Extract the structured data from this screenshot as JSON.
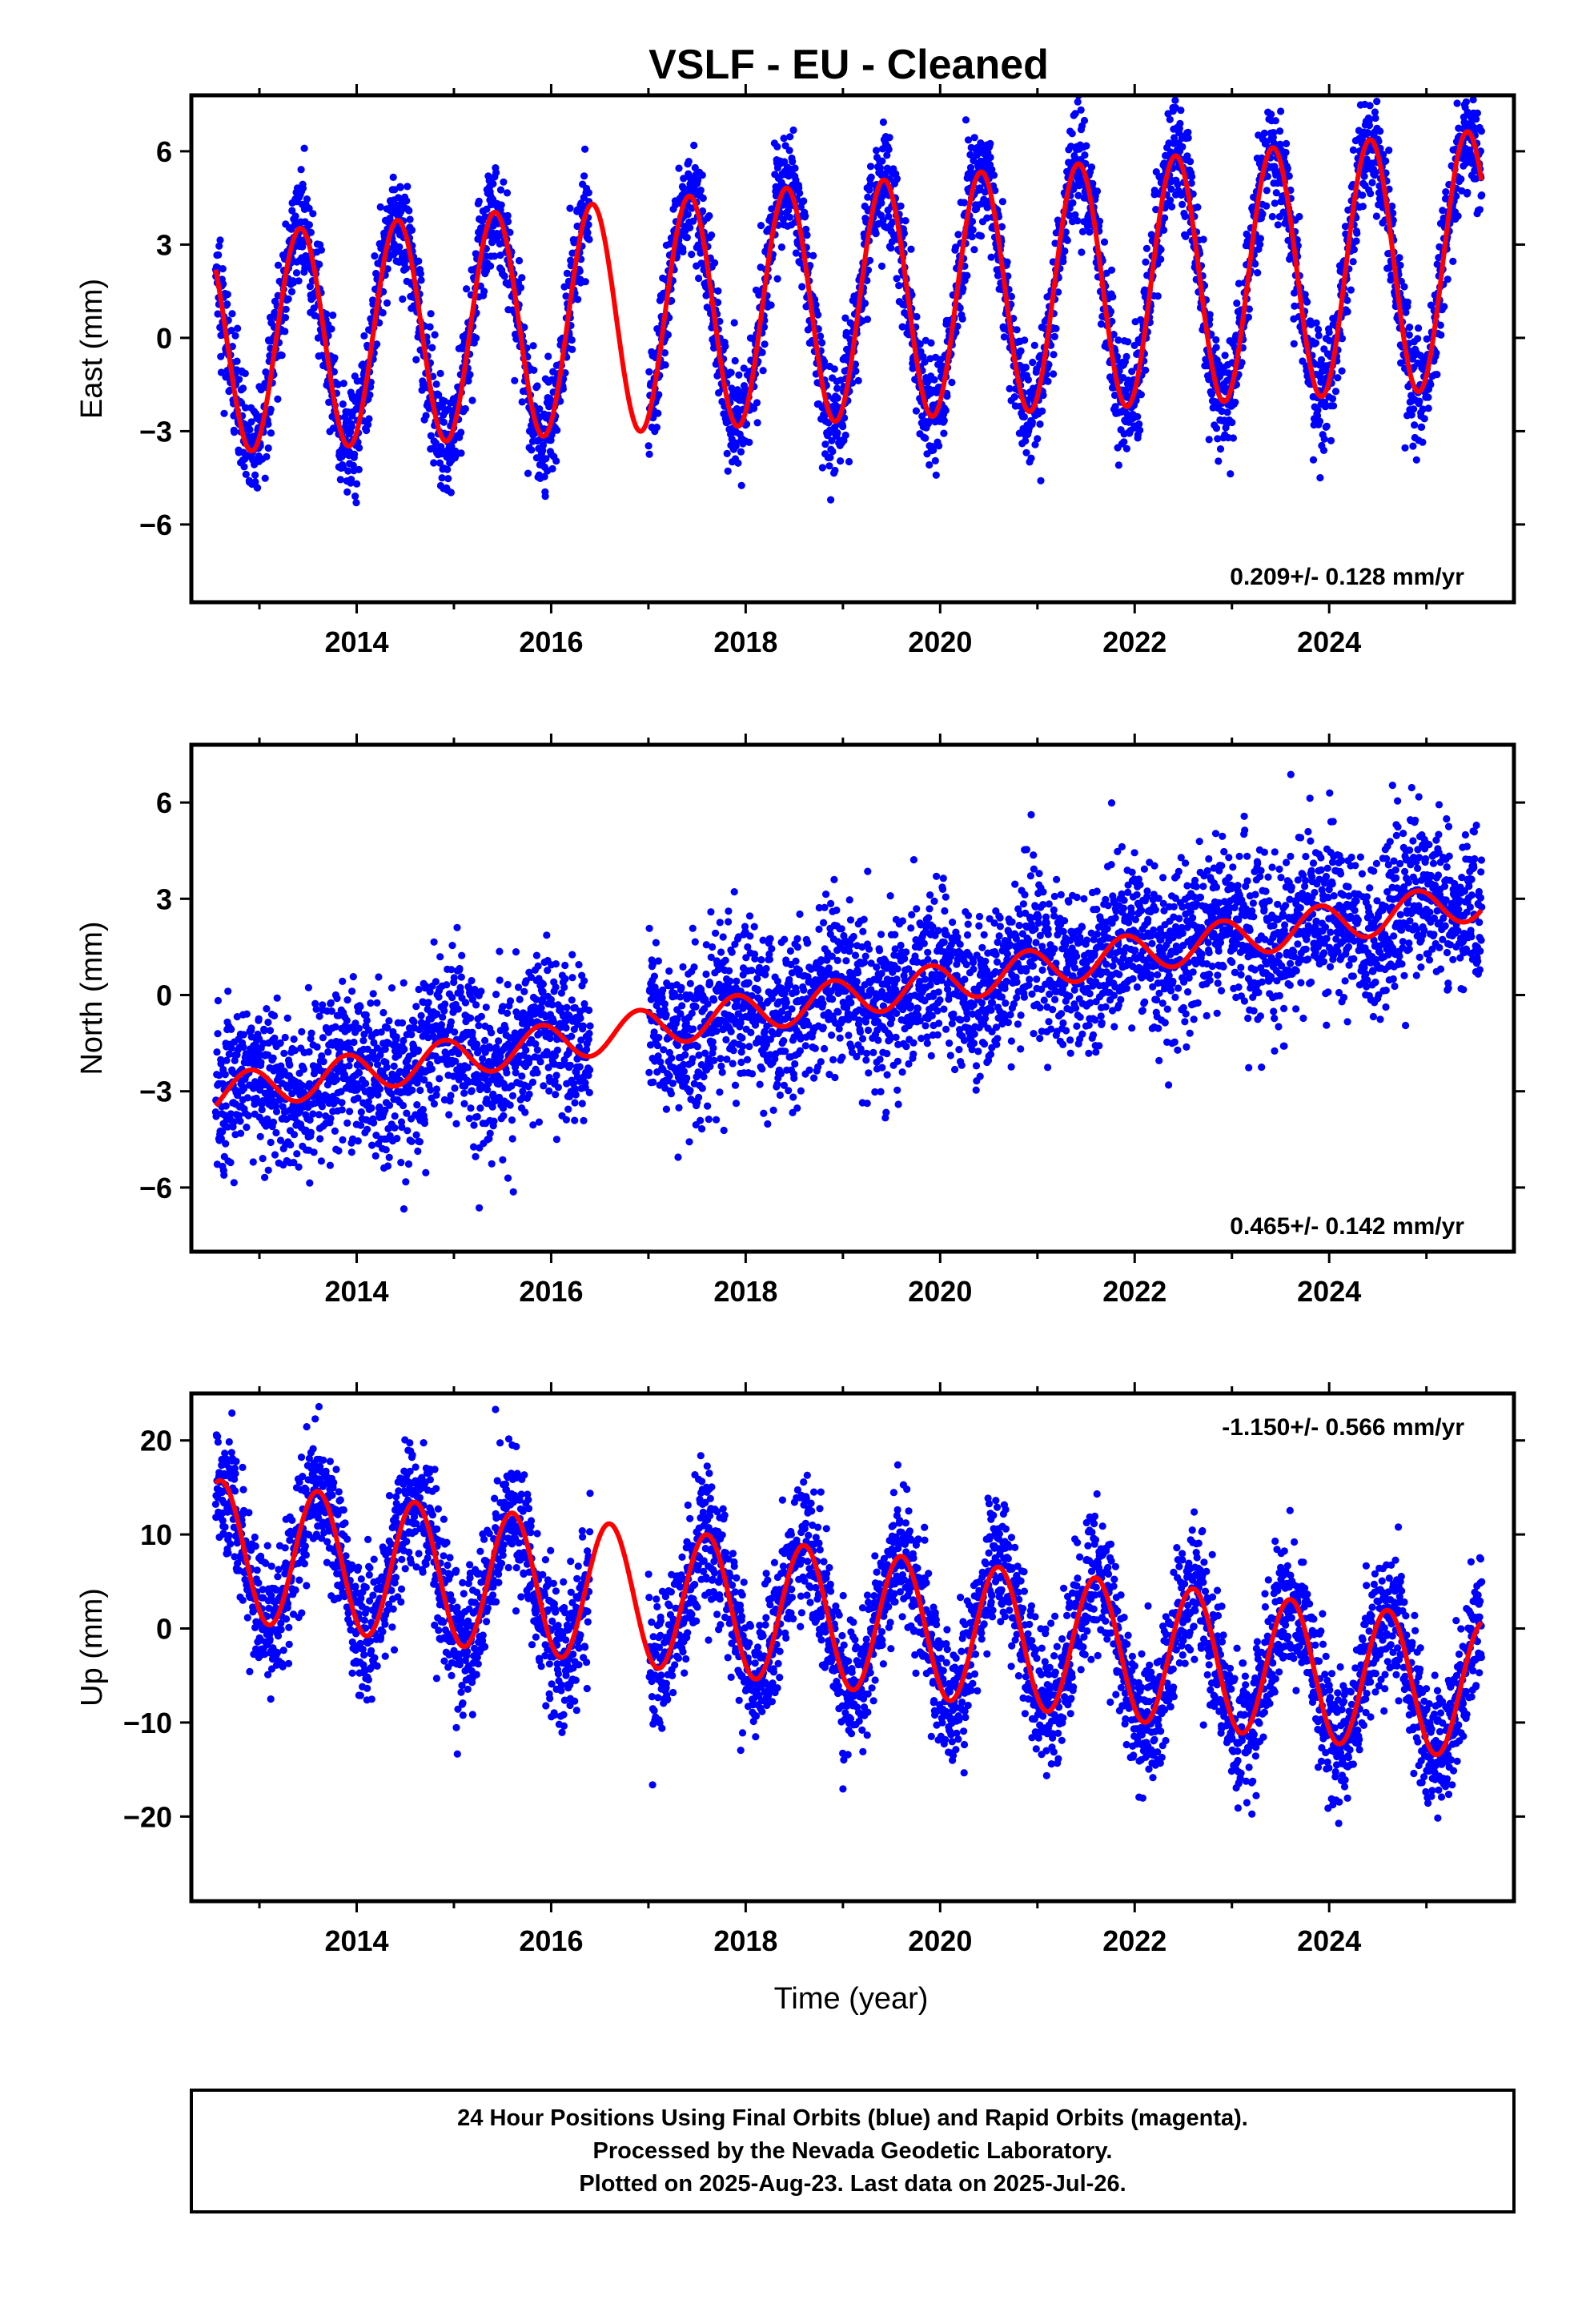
{
  "title": "VSLF  - EU - Cleaned",
  "colors": {
    "points": "#0000ff",
    "fit": "#ff0000",
    "frame": "#000000"
  },
  "chart_data": [
    {
      "type": "scatter",
      "ylabel": "East (mm)",
      "xlabel": "",
      "xlim": [
        2012.3,
        2025.9
      ],
      "ylim": [
        -8.5,
        7.8
      ],
      "x_ticks": [
        2014,
        2016,
        2018,
        2020,
        2022,
        2024
      ],
      "y_ticks": [
        6,
        3,
        0,
        -3,
        -6
      ],
      "rate_text": "0.209+/- 0.128 mm/yr",
      "rate_position": "bottom-right",
      "data_span": [
        2012.55,
        2025.57
      ],
      "data_gap": [
        2016.4,
        2017.0
      ],
      "fit": {
        "offset": -0.2,
        "trend_per_yr": 0.209,
        "annual_amplitude": 3.5,
        "peak_month_fraction": 0.42,
        "amplitude_growth_per_yr": 0.05
      },
      "scatter_sigma": 0.9,
      "series": [
        {
          "name": "Final Orbits",
          "color": "#0000ff",
          "style": "points"
        },
        {
          "name": "Fit",
          "color": "#ff0000",
          "style": "line"
        }
      ]
    },
    {
      "type": "scatter",
      "ylabel": "North (mm)",
      "xlabel": "",
      "xlim": [
        2012.3,
        2025.9
      ],
      "ylim": [
        -8.0,
        7.8
      ],
      "x_ticks": [
        2014,
        2016,
        2018,
        2020,
        2022,
        2024
      ],
      "y_ticks": [
        6,
        3,
        0,
        -3,
        -6
      ],
      "rate_text": "0.465+/- 0.142 mm/yr",
      "rate_position": "bottom-right",
      "data_span": [
        2012.55,
        2025.57
      ],
      "data_gap": [
        2016.4,
        2017.0
      ],
      "fit": {
        "offset": -3.1,
        "trend_per_yr": 0.465,
        "annual_amplitude": 0.6,
        "peak_month_fraction": 0.9,
        "amplitude_growth_per_yr": 0.0
      },
      "scatter_sigma": 1.25,
      "series": [
        {
          "name": "Final Orbits",
          "color": "#0000ff",
          "style": "points"
        },
        {
          "name": "Fit",
          "color": "#ff0000",
          "style": "line"
        }
      ]
    },
    {
      "type": "scatter",
      "ylabel": "Up (mm)",
      "xlabel": "Time (year)",
      "xlim": [
        2012.3,
        2025.9
      ],
      "ylim": [
        -29.0,
        25.0
      ],
      "x_ticks": [
        2014,
        2016,
        2018,
        2020,
        2022,
        2024
      ],
      "y_ticks": [
        20,
        10,
        0,
        -10,
        -20
      ],
      "rate_text": "-1.150+/- 0.566 mm/yr",
      "rate_position": "top-right",
      "data_span": [
        2012.55,
        2025.57
      ],
      "data_gap": [
        2016.4,
        2017.0
      ],
      "fit": {
        "offset": 8.4,
        "trend_per_yr": -1.15,
        "annual_amplitude": 7.4,
        "peak_month_fraction": 0.6,
        "amplitude_growth_per_yr": 0.0
      },
      "scatter_sigma": 3.6,
      "series": [
        {
          "name": "Final Orbits",
          "color": "#0000ff",
          "style": "points"
        },
        {
          "name": "Fit",
          "color": "#ff0000",
          "style": "line"
        }
      ]
    }
  ],
  "footer": {
    "line1": "24 Hour Positions Using Final Orbits (blue) and Rapid Orbits (magenta).",
    "line2": "Processed by the Nevada Geodetic Laboratory.",
    "line3": "Plotted on 2025-Aug-23. Last data on 2025-Jul-26."
  }
}
